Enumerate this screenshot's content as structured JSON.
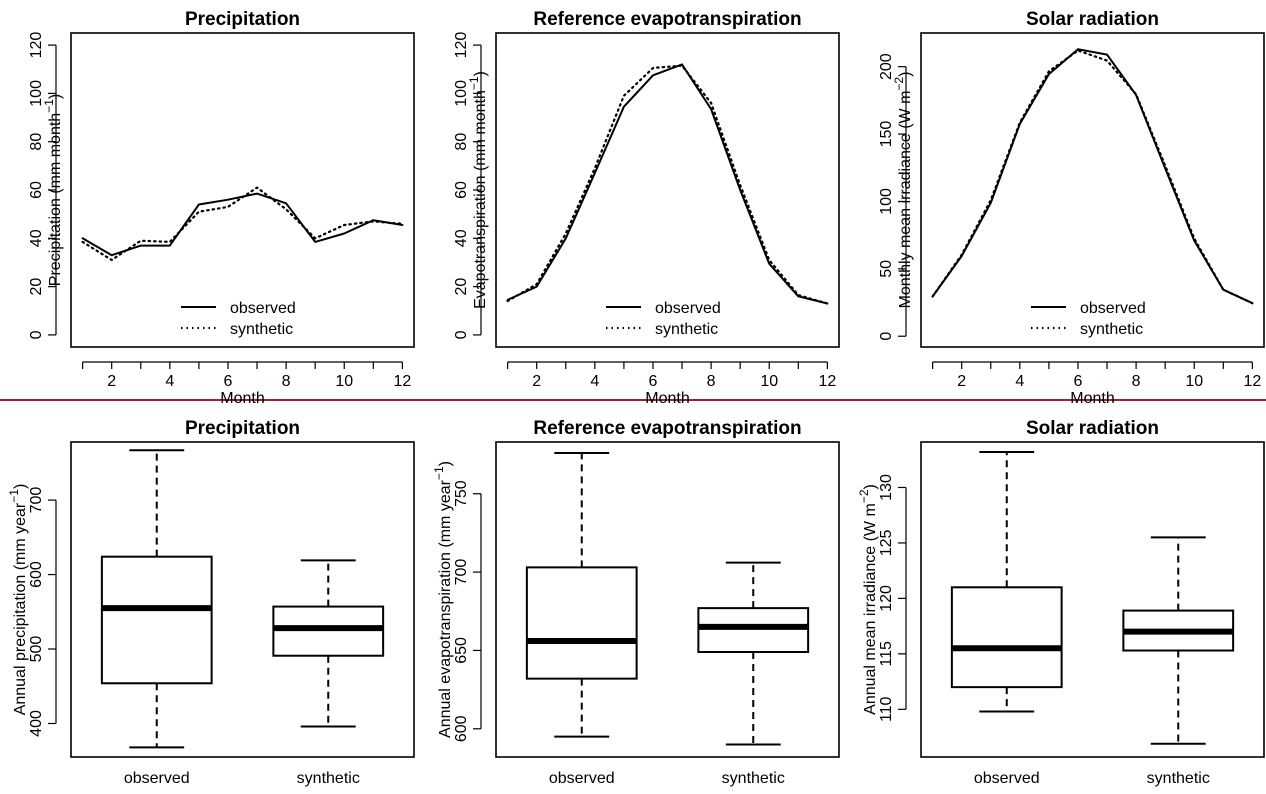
{
  "divider_color": "#9b2335",
  "chart_data": [
    {
      "type": "line",
      "title": "Precipitation",
      "xlabel": "Month",
      "ylabel": [
        "Precipitation (mm month",
        "−1",
        ")"
      ],
      "xlim": [
        0.6,
        12.4
      ],
      "ylim": [
        -5,
        125
      ],
      "xticks": [
        2,
        4,
        6,
        8,
        10,
        12
      ],
      "yticks": [
        0,
        20,
        40,
        60,
        80,
        100,
        120
      ],
      "x": [
        1,
        2,
        3,
        4,
        5,
        6,
        7,
        8,
        9,
        10,
        11,
        12
      ],
      "series": [
        {
          "name": "observed",
          "style": "solid",
          "values": [
            40,
            33,
            37,
            37,
            54,
            56,
            58.5,
            54.5,
            38.5,
            42,
            47.5,
            45.5
          ]
        },
        {
          "name": "synthetic",
          "style": "dotted",
          "values": [
            38.5,
            31,
            39,
            38.5,
            51,
            53,
            61,
            52,
            40,
            45.5,
            47,
            46
          ]
        }
      ],
      "legend": "bottom-center"
    },
    {
      "type": "line",
      "title": "Reference evapotranspiration",
      "xlabel": "Month",
      "ylabel": [
        "Evapotranspiration (mm month",
        "−1",
        ")"
      ],
      "xlim": [
        0.6,
        12.4
      ],
      "ylim": [
        -5,
        125
      ],
      "xticks": [
        2,
        4,
        6,
        8,
        10,
        12
      ],
      "yticks": [
        0,
        20,
        40,
        60,
        80,
        100,
        120
      ],
      "x": [
        1,
        2,
        3,
        4,
        5,
        6,
        7,
        8,
        9,
        10,
        11,
        12
      ],
      "series": [
        {
          "name": "observed",
          "style": "solid",
          "values": [
            14.5,
            20,
            40,
            67,
            94.5,
            107.5,
            112,
            93.5,
            60,
            29.5,
            16,
            13
          ]
        },
        {
          "name": "synthetic",
          "style": "dotted",
          "values": [
            14,
            21,
            42,
            69,
            99,
            110.5,
            111.5,
            96,
            62,
            31,
            16.5,
            13
          ]
        }
      ],
      "legend": "bottom-center"
    },
    {
      "type": "line",
      "title": "Solar radiation",
      "xlabel": "Month",
      "ylabel": [
        "Monthly mean irradiance (W m",
        "−2",
        ")"
      ],
      "xlim": [
        0.6,
        12.4
      ],
      "ylim": [
        -8,
        225
      ],
      "xticks": [
        2,
        4,
        6,
        8,
        10,
        12
      ],
      "yticks": [
        0,
        50,
        100,
        150,
        200
      ],
      "x": [
        1,
        2,
        3,
        4,
        5,
        6,
        7,
        8,
        9,
        10,
        11,
        12
      ],
      "series": [
        {
          "name": "observed",
          "style": "solid",
          "values": [
            29.5,
            59.5,
            99,
            157.5,
            194.5,
            213,
            209,
            179,
            124.5,
            71,
            34.5,
            24.5
          ]
        },
        {
          "name": "synthetic",
          "style": "dotted",
          "values": [
            29.5,
            60.5,
            101,
            158.5,
            196.5,
            212,
            204.5,
            179.5,
            126.5,
            72.5,
            34.5,
            24.5
          ]
        }
      ],
      "legend": "bottom-center"
    },
    {
      "type": "box",
      "title": "Precipitation",
      "ylabel": [
        "Annual precipitation (mm year",
        "−1",
        ")"
      ],
      "ylim": [
        355,
        778
      ],
      "yticks": [
        400,
        500,
        600,
        700
      ],
      "categories": [
        "observed",
        "synthetic"
      ],
      "boxes": [
        {
          "whisker_low": 368,
          "q1": 454,
          "median": 555,
          "q3": 624,
          "whisker_high": 767
        },
        {
          "whisker_low": 396,
          "q1": 491,
          "median": 528,
          "q3": 557,
          "whisker_high": 619
        }
      ]
    },
    {
      "type": "box",
      "title": "Reference evapotranspiration",
      "ylabel": [
        "Annual evapotranspiration (mm year",
        "−1",
        ")"
      ],
      "ylim": [
        582,
        783
      ],
      "yticks": [
        600,
        650,
        700,
        750
      ],
      "categories": [
        "observed",
        "synthetic"
      ],
      "boxes": [
        {
          "whisker_low": 595,
          "q1": 632,
          "median": 656,
          "q3": 703,
          "whisker_high": 776
        },
        {
          "whisker_low": 590,
          "q1": 649,
          "median": 665,
          "q3": 677,
          "whisker_high": 706
        }
      ]
    },
    {
      "type": "box",
      "title": "Solar radiation",
      "ylabel": [
        "Annual mean irradiance (W m",
        "−2",
        ")"
      ],
      "ylim": [
        105.7,
        134.1
      ],
      "yticks": [
        110,
        115,
        120,
        125,
        130
      ],
      "categories": [
        "observed",
        "synthetic"
      ],
      "boxes": [
        {
          "whisker_low": 109.8,
          "q1": 112,
          "median": 115.5,
          "q3": 121,
          "whisker_high": 133.2
        },
        {
          "whisker_low": 106.9,
          "q1": 115.3,
          "median": 117,
          "q3": 118.9,
          "whisker_high": 125.5
        }
      ]
    }
  ]
}
